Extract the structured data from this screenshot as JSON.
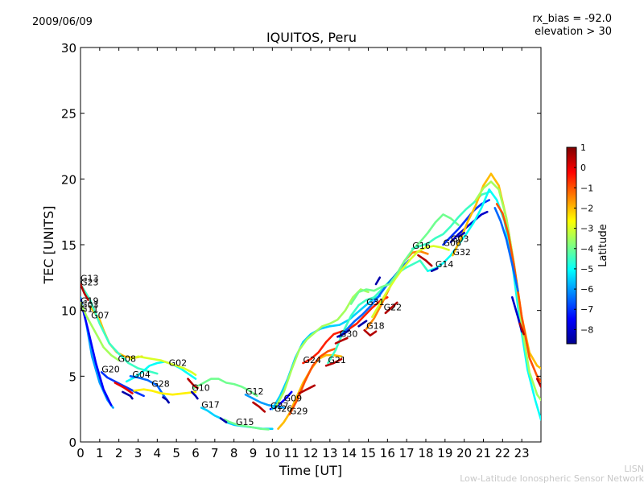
{
  "header": {
    "date": "2009/06/09",
    "rx_bias": "rx_bias = -92.0",
    "elevation": "elevation > 30"
  },
  "footer": {
    "credit_short": "LISN",
    "credit_long": "Low-Latitude Ionospheric Sensor Network"
  },
  "chart_data": {
    "type": "line",
    "title": "IQUITOS, Peru",
    "xlabel": "Time [UT]",
    "ylabel": "TEC [UNITS]",
    "xlim": [
      0,
      24
    ],
    "ylim": [
      0,
      30
    ],
    "xticks": [
      "0",
      "1",
      "2",
      "3",
      "4",
      "5",
      "6",
      "7",
      "8",
      "9",
      "10",
      "11",
      "12",
      "13",
      "14",
      "15",
      "16",
      "17",
      "18",
      "19",
      "20",
      "21",
      "22",
      "23"
    ],
    "yticks": [
      "0",
      "5",
      "10",
      "15",
      "20",
      "25",
      "30"
    ],
    "grid": false,
    "colorbar": {
      "label": "Latitude",
      "range": [
        -8.7,
        1.0
      ],
      "ticks": [
        "1",
        "0",
        "−1",
        "−2",
        "−3",
        "−4",
        "−5",
        "−6",
        "−7",
        "−8"
      ],
      "tick_values": [
        1,
        0,
        -1,
        -2,
        -3,
        -4,
        -5,
        -6,
        -7,
        -8
      ]
    },
    "satellite_labels": [
      {
        "name": "G13",
        "t": 0.0,
        "tec": 12.2
      },
      {
        "name": "G23",
        "t": 0.0,
        "tec": 11.9
      },
      {
        "name": "G19",
        "t": 0.0,
        "tec": 10.5
      },
      {
        "name": "G03",
        "t": 0.0,
        "tec": 10.2
      },
      {
        "name": "G11",
        "t": 0.0,
        "tec": 9.9
      },
      {
        "name": "G07",
        "t": 0.55,
        "tec": 9.4
      },
      {
        "name": "G08",
        "t": 1.95,
        "tec": 6.1
      },
      {
        "name": "G20",
        "t": 1.1,
        "tec": 5.3
      },
      {
        "name": "G04",
        "t": 2.7,
        "tec": 4.9
      },
      {
        "name": "G02",
        "t": 4.6,
        "tec": 5.8
      },
      {
        "name": "G28",
        "t": 3.7,
        "tec": 4.2
      },
      {
        "name": "G10",
        "t": 5.8,
        "tec": 3.9
      },
      {
        "name": "G17",
        "t": 6.3,
        "tec": 2.6
      },
      {
        "name": "G15",
        "t": 8.1,
        "tec": 1.3
      },
      {
        "name": "G12",
        "t": 8.6,
        "tec": 3.6
      },
      {
        "name": "G09",
        "t": 10.6,
        "tec": 3.1
      },
      {
        "name": "G27",
        "t": 9.9,
        "tec": 2.5
      },
      {
        "name": "G26",
        "t": 10.1,
        "tec": 2.3
      },
      {
        "name": "G29",
        "t": 10.9,
        "tec": 2.1
      },
      {
        "name": "G24",
        "t": 11.6,
        "tec": 6.0
      },
      {
        "name": "G21",
        "t": 12.9,
        "tec": 6.0
      },
      {
        "name": "G30",
        "t": 13.5,
        "tec": 8.0
      },
      {
        "name": "G18",
        "t": 14.9,
        "tec": 8.6
      },
      {
        "name": "G31",
        "t": 14.9,
        "tec": 10.4
      },
      {
        "name": "G22",
        "t": 15.8,
        "tec": 10.0
      },
      {
        "name": "G16",
        "t": 17.3,
        "tec": 14.7
      },
      {
        "name": "G14",
        "t": 18.5,
        "tec": 13.3
      },
      {
        "name": "G06",
        "t": 18.9,
        "tec": 14.9
      },
      {
        "name": "G03",
        "t": 19.3,
        "tec": 15.2
      },
      {
        "name": "G32",
        "t": 19.4,
        "tec": 14.2
      }
    ],
    "series": [
      {
        "lat": -6.0,
        "x": [
          0,
          0.3,
          0.6,
          1.0,
          1.4,
          1.7
        ],
        "y": [
          11.0,
          9.0,
          6.5,
          4.5,
          3.2,
          2.6
        ]
      },
      {
        "lat": -7.5,
        "x": [
          0,
          0.4,
          0.8,
          1.2,
          1.6
        ],
        "y": [
          10.8,
          8.5,
          6.0,
          4.0,
          2.8
        ]
      },
      {
        "lat": -3.5,
        "x": [
          0,
          0.3,
          0.6,
          0.9,
          1.2,
          1.6,
          2.0
        ],
        "y": [
          10.6,
          9.6,
          8.8,
          8.0,
          7.2,
          6.6,
          6.2
        ]
      },
      {
        "lat": -2.0,
        "x": [
          0.5,
          0.8,
          1.0,
          1.2,
          1.5,
          1.9,
          2.3,
          2.8,
          3.2
        ],
        "y": [
          10.3,
          9.7,
          9.3,
          8.5,
          7.5,
          6.8,
          6.5,
          6.4,
          6.5
        ]
      },
      {
        "lat": -4.5,
        "x": [
          0,
          0.5,
          1.0,
          1.5,
          2.0,
          2.5,
          3.0,
          3.5,
          4.0
        ],
        "y": [
          12.0,
          10.8,
          9.0,
          7.5,
          6.7,
          6.0,
          5.6,
          5.4,
          5.2
        ]
      },
      {
        "lat": -7.0,
        "x": [
          1.1,
          1.4,
          1.8,
          2.2,
          2.6,
          3.0,
          3.3
        ],
        "y": [
          5.3,
          4.9,
          4.6,
          4.3,
          4.0,
          3.7,
          3.5
        ]
      },
      {
        "lat": -5.0,
        "x": [
          2.4,
          2.8,
          3.2,
          3.6,
          4.0,
          4.4,
          4.8,
          5.2,
          5.6,
          6.0
        ],
        "y": [
          4.6,
          4.9,
          5.3,
          5.8,
          6.0,
          6.1,
          5.9,
          5.6,
          5.2,
          4.8
        ]
      },
      {
        "lat": -3.0,
        "x": [
          2.6,
          3.0,
          3.4,
          3.8,
          4.2,
          4.6,
          5.0,
          5.4,
          5.8,
          6.0
        ],
        "y": [
          6.3,
          6.5,
          6.4,
          6.3,
          6.2,
          6.0,
          5.8,
          5.6,
          5.3,
          5.1
        ]
      },
      {
        "lat": -6.5,
        "x": [
          2.6,
          3.0,
          3.5,
          4.0,
          4.3,
          4.6
        ],
        "y": [
          5.0,
          4.9,
          4.7,
          4.3,
          3.6,
          3.0
        ]
      },
      {
        "lat": -2.5,
        "x": [
          2.8,
          3.3,
          3.7,
          4.2,
          4.8,
          5.4,
          6.0
        ],
        "y": [
          3.9,
          4.0,
          3.9,
          3.7,
          3.6,
          3.7,
          3.8
        ]
      },
      {
        "lat": -4.0,
        "x": [
          5.9,
          6.3,
          6.8,
          7.2,
          7.6,
          8.0,
          8.4,
          8.8,
          9.2
        ],
        "y": [
          4.1,
          4.4,
          4.8,
          4.8,
          4.5,
          4.4,
          4.2,
          3.9,
          3.5
        ]
      },
      {
        "lat": -5.5,
        "x": [
          6.3,
          6.6,
          7.0,
          7.3,
          7.6,
          8.0,
          8.5,
          9.0,
          9.5,
          10.0
        ],
        "y": [
          2.6,
          2.4,
          2.0,
          1.8,
          1.5,
          1.3,
          1.2,
          1.1,
          1.0,
          1.0
        ]
      },
      {
        "lat": -4.0,
        "x": [
          7.5,
          7.8,
          8.2,
          8.6,
          9.0,
          9.4,
          9.8
        ],
        "y": [
          1.7,
          1.5,
          1.3,
          1.2,
          1.1,
          1.0,
          0.95
        ]
      },
      {
        "lat": -6.0,
        "x": [
          8.6,
          9.0,
          9.4,
          9.8,
          10.2,
          10.6
        ],
        "y": [
          3.6,
          3.3,
          3.0,
          2.8,
          2.7,
          2.6
        ]
      },
      {
        "lat": -7.5,
        "x": [
          9.9,
          10.1,
          10.4,
          10.7,
          11.0
        ],
        "y": [
          2.5,
          2.6,
          2.9,
          3.3,
          3.8
        ]
      },
      {
        "lat": -5.5,
        "x": [
          10.0,
          10.4,
          10.8,
          11.2,
          11.6,
          12.0,
          12.5,
          13.0,
          13.5,
          14.0,
          14.4,
          14.8,
          15.2,
          15.6
        ],
        "y": [
          2.5,
          3.5,
          4.8,
          6.4,
          7.6,
          8.2,
          8.6,
          8.8,
          8.9,
          9.3,
          9.8,
          10.3,
          10.8,
          11.1
        ]
      },
      {
        "lat": -3.5,
        "x": [
          10.2,
          10.6,
          11.0,
          11.4,
          11.8,
          12.2,
          12.6,
          13.0,
          13.4,
          13.8,
          14.2,
          14.6,
          15.0
        ],
        "y": [
          2.7,
          3.8,
          5.5,
          7.0,
          7.8,
          8.3,
          8.8,
          9.0,
          9.3,
          10.0,
          11.0,
          11.6,
          11.4
        ]
      },
      {
        "lat": -2.0,
        "x": [
          10.3,
          10.6,
          10.9,
          11.2,
          11.6,
          12.0,
          12.4,
          12.8,
          13.2,
          13.6
        ],
        "y": [
          1.0,
          1.5,
          2.2,
          3.2,
          4.5,
          5.5,
          6.3,
          6.6,
          6.6,
          6.5
        ]
      },
      {
        "lat": -1.0,
        "x": [
          10.9,
          11.3,
          11.7,
          12.1,
          12.5,
          12.9,
          13.3
        ],
        "y": [
          2.1,
          3.2,
          4.6,
          5.8,
          6.5,
          6.9,
          7.1
        ]
      },
      {
        "lat": -0.5,
        "x": [
          11.6,
          12.0,
          12.4,
          12.8,
          13.2,
          13.6,
          14.0,
          14.4,
          14.8,
          15.2,
          15.6,
          16.0
        ],
        "y": [
          6.0,
          6.3,
          6.8,
          7.6,
          8.2,
          8.4,
          8.6,
          9.0,
          9.6,
          10.2,
          10.7,
          11.0
        ]
      },
      {
        "lat": -4.5,
        "x": [
          12.9,
          13.3,
          13.7,
          14.1,
          14.5,
          14.9,
          15.3,
          15.7,
          16.1,
          16.5,
          16.9,
          17.3,
          17.7,
          18.1
        ],
        "y": [
          6.0,
          7.0,
          8.4,
          9.6,
          10.4,
          10.8,
          11.0,
          11.6,
          12.2,
          12.8,
          13.2,
          13.5,
          13.8,
          13.0
        ]
      },
      {
        "lat": -6.5,
        "x": [
          13.5,
          13.9,
          14.3,
          14.7,
          15.1,
          15.5,
          15.9,
          16.3,
          16.7,
          17.1
        ],
        "y": [
          8.0,
          8.6,
          9.2,
          9.7,
          10.3,
          11.0,
          11.8,
          12.5,
          13.2,
          13.8
        ]
      },
      {
        "lat": -1.5,
        "x": [
          14.9,
          15.3,
          15.7,
          16.1,
          16.5,
          16.9,
          17.3,
          17.7,
          18.1
        ],
        "y": [
          8.6,
          9.4,
          10.5,
          11.7,
          12.8,
          13.8,
          14.4,
          14.5,
          14.3
        ]
      },
      {
        "lat": -3.0,
        "x": [
          15.2,
          15.6,
          16.0,
          16.4,
          16.8,
          17.2,
          17.6,
          18.0,
          18.4,
          18.8,
          19.2
        ],
        "y": [
          9.5,
          10.5,
          11.5,
          12.4,
          13.2,
          13.9,
          14.5,
          14.8,
          14.9,
          14.8,
          14.6
        ]
      },
      {
        "lat": -4.0,
        "x": [
          14.1,
          14.5,
          14.9,
          15.3,
          15.7,
          16.1,
          16.5,
          16.9,
          17.3,
          17.7,
          18.1,
          18.5,
          18.9,
          19.3,
          19.7
        ],
        "y": [
          10.5,
          11.4,
          11.6,
          11.5,
          11.8,
          12.0,
          12.8,
          13.8,
          14.6,
          15.2,
          15.9,
          16.7,
          17.3,
          17.0,
          16.5
        ]
      },
      {
        "lat": -4.5,
        "x": [
          17.3,
          17.7,
          18.1,
          18.5,
          18.9,
          19.3,
          19.7,
          20.1,
          20.5,
          20.9,
          21.3
        ],
        "y": [
          14.7,
          14.9,
          15.1,
          15.5,
          15.8,
          16.4,
          17.1,
          17.7,
          18.2,
          18.8,
          19.0
        ]
      },
      {
        "lat": -7.0,
        "x": [
          18.9,
          19.3,
          19.7,
          20.1,
          20.5,
          20.9,
          21.3
        ],
        "y": [
          15.0,
          15.6,
          16.2,
          16.9,
          17.6,
          18.1,
          18.4
        ]
      },
      {
        "lat": -8.0,
        "x": [
          19.3,
          19.7,
          20.1,
          20.5,
          20.9,
          21.2
        ],
        "y": [
          15.2,
          15.8,
          16.3,
          16.8,
          17.3,
          17.5
        ]
      },
      {
        "lat": -5.0,
        "x": [
          18.1,
          18.5,
          18.9,
          19.3,
          19.7,
          20.1,
          20.5,
          20.9,
          21.3,
          21.7,
          22.1,
          22.5,
          22.9,
          23.3,
          23.7,
          24.0
        ],
        "y": [
          13.0,
          13.2,
          13.6,
          14.2,
          15.0,
          15.8,
          16.7,
          17.8,
          19.2,
          18.4,
          16.8,
          13.6,
          9.2,
          5.5,
          3.2,
          1.7
        ]
      },
      {
        "lat": -2.0,
        "x": [
          19.4,
          19.8,
          20.2,
          20.6,
          21.0,
          21.4,
          21.8,
          22.2,
          22.6,
          23.0,
          23.4,
          23.8,
          24.0
        ],
        "y": [
          14.2,
          15.4,
          16.8,
          18.0,
          19.5,
          20.4,
          19.5,
          17.0,
          13.5,
          9.5,
          6.8,
          5.8,
          5.6
        ]
      },
      {
        "lat": -3.5,
        "x": [
          20.6,
          21.0,
          21.4,
          21.8,
          22.2,
          22.6,
          23.0,
          23.4,
          23.8,
          24.0
        ],
        "y": [
          18.4,
          19.3,
          19.8,
          19.2,
          17.0,
          13.5,
          8.8,
          5.3,
          3.6,
          3.2
        ]
      },
      {
        "lat": -1.0,
        "x": [
          21.7,
          22.0,
          22.3,
          22.6,
          23.0,
          23.4,
          23.8,
          24.0
        ],
        "y": [
          18.1,
          17.4,
          15.8,
          13.4,
          9.5,
          6.4,
          5.0,
          4.6
        ]
      },
      {
        "lat": -6.5,
        "x": [
          21.6,
          21.9,
          22.2,
          22.5,
          22.8
        ],
        "y": [
          17.8,
          16.8,
          15.4,
          13.5,
          11.5
        ]
      },
      {
        "lat": -8.0,
        "x": [
          22.5,
          22.8,
          23.0
        ],
        "y": [
          11.0,
          9.5,
          8.4
        ]
      },
      {
        "lat": 0.5,
        "x": [
          22.9,
          23.1
        ],
        "y": [
          9.0,
          8.2
        ]
      },
      {
        "lat": 0.5,
        "x": [
          23.8,
          24.0
        ],
        "y": [
          4.8,
          4.2
        ]
      },
      {
        "lat": 0.5,
        "x": [
          0,
          0.2,
          0.4
        ],
        "y": [
          12.0,
          11.3,
          10.8
        ]
      },
      {
        "lat": 0.0,
        "x": [
          1.8,
          2.3,
          2.7
        ],
        "y": [
          4.5,
          4.1,
          3.7
        ]
      },
      {
        "lat": 0.5,
        "x": [
          5.6,
          5.9,
          6.1
        ],
        "y": [
          4.8,
          4.3,
          4.1
        ]
      },
      {
        "lat": 0.5,
        "x": [
          9.0,
          9.3,
          9.6
        ],
        "y": [
          3.0,
          2.7,
          2.3
        ]
      },
      {
        "lat": 0.5,
        "x": [
          11.4,
          11.8,
          12.2
        ],
        "y": [
          3.7,
          4.0,
          4.3
        ]
      },
      {
        "lat": 0.5,
        "x": [
          12.8,
          13.2,
          13.6
        ],
        "y": [
          5.8,
          6.0,
          6.3
        ]
      },
      {
        "lat": 0.5,
        "x": [
          13.3,
          13.6,
          13.9
        ],
        "y": [
          7.5,
          7.7,
          7.9
        ]
      },
      {
        "lat": 0.5,
        "x": [
          14.8,
          15.1,
          15.4
        ],
        "y": [
          8.5,
          8.1,
          8.4
        ]
      },
      {
        "lat": 0.5,
        "x": [
          15.9,
          16.2,
          16.5
        ],
        "y": [
          9.8,
          10.2,
          10.6
        ]
      },
      {
        "lat": 0.5,
        "x": [
          17.6,
          18.0,
          18.3
        ],
        "y": [
          14.2,
          13.8,
          13.4
        ]
      },
      {
        "lat": -8.3,
        "x": [
          2.2,
          2.6,
          2.7
        ],
        "y": [
          3.8,
          3.5,
          3.3
        ]
      },
      {
        "lat": -8.3,
        "x": [
          4.3,
          4.5,
          4.6
        ],
        "y": [
          3.4,
          3.2,
          3.0
        ]
      },
      {
        "lat": -8.3,
        "x": [
          5.8,
          6.0,
          6.1
        ],
        "y": [
          3.8,
          3.5,
          3.3
        ]
      },
      {
        "lat": -8.3,
        "x": [
          7.3,
          7.5,
          7.6
        ],
        "y": [
          1.8,
          1.6,
          1.5
        ]
      },
      {
        "lat": -8.3,
        "x": [
          13.4,
          13.7,
          14.0
        ],
        "y": [
          8.0,
          8.2,
          8.5
        ]
      },
      {
        "lat": -8.3,
        "x": [
          14.5,
          14.7,
          14.9
        ],
        "y": [
          8.8,
          9.0,
          9.2
        ]
      },
      {
        "lat": -8.3,
        "x": [
          15.4,
          15.6
        ],
        "y": [
          12.0,
          12.5
        ]
      },
      {
        "lat": -8.3,
        "x": [
          18.3,
          18.6
        ],
        "y": [
          13.0,
          13.2
        ]
      },
      {
        "lat": -8.3,
        "x": [
          19.7,
          20.0
        ],
        "y": [
          15.6,
          15.9
        ]
      }
    ]
  }
}
